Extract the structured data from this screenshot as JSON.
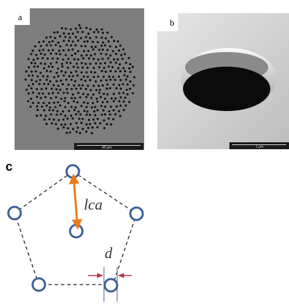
{
  "panels": {
    "a": {
      "label": "a",
      "scale_bar": "40 μm"
    },
    "b": {
      "label": "b",
      "scale_bar": "1 μm"
    },
    "c": {
      "label": "c",
      "center_label": "lca",
      "diameter_label": "d"
    }
  },
  "colors": {
    "sem_background": "#7e7e7e",
    "hole_fill": "#111111",
    "circle_stroke": "#3d5f9a",
    "arrow_orange": "#e8791c",
    "arrow_red": "#b5354a",
    "dashed_line": "#222222"
  }
}
